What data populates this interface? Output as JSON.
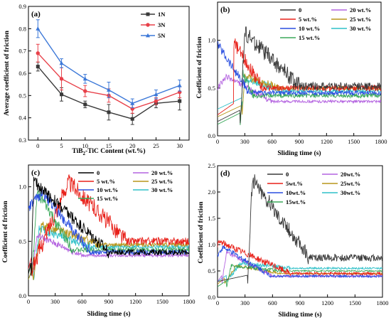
{
  "chart_data": [
    {
      "type": "line",
      "panel": "(a)",
      "xlabel_parts": [
        "TiB",
        "2",
        "-TiC Content (wt.%)"
      ],
      "ylabel": "Average coefficient of friction",
      "x": [
        0,
        5,
        10,
        15,
        20,
        25,
        30
      ],
      "xlim": [
        -2,
        32
      ],
      "ylim": [
        0.3,
        0.9
      ],
      "xticks": [
        "0",
        "5",
        "10",
        "15",
        "20",
        "25",
        "30"
      ],
      "yticks": [
        "0.3",
        "0.4",
        "0.5",
        "0.6",
        "0.7",
        "0.8",
        "0.9"
      ],
      "legend_position": "top-right",
      "series": [
        {
          "name": "1N",
          "color": "#3a3a3a",
          "marker": "square",
          "values": [
            0.63,
            0.505,
            0.46,
            0.425,
            0.395,
            0.465,
            0.475
          ],
          "errors": [
            0.02,
            0.03,
            0.015,
            0.035,
            0.025,
            0.02,
            0.04
          ]
        },
        {
          "name": "3N",
          "color": "#e8414a",
          "marker": "circle",
          "values": [
            0.69,
            0.575,
            0.52,
            0.5,
            0.44,
            0.475,
            0.515
          ],
          "errors": [
            0.04,
            0.05,
            0.025,
            0.03,
            0.02,
            0.015,
            0.025
          ]
        },
        {
          "name": "5N",
          "color": "#3c78d8",
          "marker": "triangle",
          "values": [
            0.8,
            0.645,
            0.575,
            0.525,
            0.465,
            0.505,
            0.545
          ],
          "errors": [
            0.04,
            0.02,
            0.02,
            0.035,
            0.02,
            0.02,
            0.025
          ]
        }
      ]
    },
    {
      "type": "line",
      "panel": "(b)",
      "xlabel": "Sliding time (s)",
      "ylabel": "Coefficient of friction",
      "xlim": [
        0,
        1800
      ],
      "ylim": [
        0,
        1.4
      ],
      "xticks": [
        "0",
        "300",
        "600",
        "900",
        "1200",
        "1500",
        "1800"
      ],
      "yticks": [
        "0.0",
        "0.5",
        "1.0"
      ],
      "ytick_values": [
        0,
        0.5,
        1.0
      ],
      "legend_position": "top-right",
      "series": [
        {
          "name": "0",
          "color": "#3a3a3a",
          "start": 0.15,
          "peak": 1.08,
          "peak_t": 300,
          "steady": 0.52,
          "trans": 900,
          "noise": 0.09,
          "jump_t": 250
        },
        {
          "name": "5 wt.%",
          "color": "#e8211a",
          "start": 0.22,
          "peak": 1.02,
          "peak_t": 150,
          "steady": 0.5,
          "trans": 500,
          "noise": 0.07,
          "jump_t": 180
        },
        {
          "name": "10 wt.%",
          "color": "#2a4fe0",
          "start": 0.95,
          "peak": 0.95,
          "peak_t": 10,
          "steady": 0.45,
          "trans": 350,
          "noise": 0.05,
          "jump_t": 0
        },
        {
          "name": "15 wt.%",
          "color": "#3aa85a",
          "start": 0.12,
          "peak": 0.65,
          "peak_t": 280,
          "steady": 0.42,
          "trans": 400,
          "noise": 0.05,
          "jump_t": 250
        },
        {
          "name": "20 wt.%",
          "color": "#b463e0",
          "start": 0.5,
          "peak": 0.62,
          "peak_t": 100,
          "steady": 0.36,
          "trans": 600,
          "noise": 0.03,
          "jump_t": 0
        },
        {
          "name": "25 wt.%",
          "color": "#b8961c",
          "start": 0.2,
          "peak": 0.62,
          "peak_t": 300,
          "steady": 0.5,
          "trans": 700,
          "noise": 0.04,
          "jump_t": 270
        },
        {
          "name": "30 wt.%",
          "color": "#2ec0c8",
          "start": 0.28,
          "peak": 0.6,
          "peak_t": 300,
          "steady": 0.47,
          "trans": 700,
          "noise": 0.04,
          "jump_t": 270
        }
      ]
    },
    {
      "type": "line",
      "panel": "(c)",
      "xlabel": "Sliding time (s)",
      "ylabel": "Coefficient of friction",
      "xlim": [
        0,
        1800
      ],
      "ylim": [
        0,
        1.2
      ],
      "xticks": [
        "0",
        "300",
        "600",
        "900",
        "1200",
        "1500",
        "1800"
      ],
      "yticks": [
        "0.0",
        "0.5",
        "1.0"
      ],
      "ytick_values": [
        0,
        0.5,
        1.0
      ],
      "legend_position": "top-right",
      "series": [
        {
          "name": "0",
          "color": "#000000",
          "start": 0.2,
          "peak": 1.05,
          "peak_t": 60,
          "steady": 0.4,
          "trans": 900,
          "noise": 0.06,
          "jump_t": 30
        },
        {
          "name": "5 wt.%",
          "color": "#e8211a",
          "start": 0.25,
          "peak": 1.05,
          "peak_t": 450,
          "steady": 0.5,
          "trans": 1100,
          "noise": 0.08,
          "jump_t": 40
        },
        {
          "name": "10 wt.%",
          "color": "#2a4fe0",
          "start": 0.8,
          "peak": 0.95,
          "peak_t": 150,
          "steady": 0.4,
          "trans": 700,
          "noise": 0.05,
          "jump_t": 0
        },
        {
          "name": "15 wt.%",
          "color": "#3aa85a",
          "start": 0.2,
          "peak": 0.95,
          "peak_t": 100,
          "steady": 0.42,
          "trans": 500,
          "noise": 0.05,
          "jump_t": 40
        },
        {
          "name": "20 wt.%",
          "color": "#b463e0",
          "start": 0.25,
          "peak": 0.55,
          "peak_t": 100,
          "steady": 0.37,
          "trans": 600,
          "noise": 0.03,
          "jump_t": 40
        },
        {
          "name": "25 wt.%",
          "color": "#b8961c",
          "start": 0.15,
          "peak": 0.65,
          "peak_t": 150,
          "steady": 0.47,
          "trans": 800,
          "noise": 0.04,
          "jump_t": 50
        },
        {
          "name": "30 wt.%",
          "color": "#2ec0c8",
          "start": 0.15,
          "peak": 0.62,
          "peak_t": 120,
          "steady": 0.45,
          "trans": 700,
          "noise": 0.04,
          "jump_t": 60
        }
      ]
    },
    {
      "type": "line",
      "panel": "(d)",
      "xlabel": "Sliding time (s)",
      "ylabel": "Coefficient of friction",
      "xlim": [
        0,
        1800
      ],
      "ylim": [
        0,
        2.5
      ],
      "xticks": [
        "0",
        "300",
        "600",
        "900",
        "1200",
        "1500",
        "1800"
      ],
      "yticks": [
        "0.0",
        "0.5",
        "1.0",
        "1.5",
        "2.0",
        "2.5"
      ],
      "ytick_values": [
        0,
        0.5,
        1.0,
        1.5,
        2.0,
        2.5
      ],
      "legend_position": "top-right",
      "series": [
        {
          "name": "0",
          "color": "#3a3a3a",
          "start": 0.3,
          "peak": 2.25,
          "peak_t": 380,
          "steady": 0.75,
          "trans": 1000,
          "noise": 0.15,
          "jump_t": 330
        },
        {
          "name": "5wt.%",
          "color": "#e8211a",
          "start": 1.0,
          "peak": 1.05,
          "peak_t": 30,
          "steady": 0.45,
          "trans": 800,
          "noise": 0.06,
          "jump_t": 0
        },
        {
          "name": "10wt.%",
          "color": "#2a4fe0",
          "start": 0.8,
          "peak": 0.95,
          "peak_t": 60,
          "steady": 0.4,
          "trans": 600,
          "noise": 0.05,
          "jump_t": 0
        },
        {
          "name": "15wt.%",
          "color": "#3aa85a",
          "start": 0.2,
          "peak": 0.6,
          "peak_t": 150,
          "steady": 0.5,
          "trans": 700,
          "noise": 0.03,
          "jump_t": 100
        },
        {
          "name": "20wt.%",
          "color": "#b463e0",
          "start": 0.3,
          "peak": 0.85,
          "peak_t": 100,
          "steady": 0.4,
          "trans": 600,
          "noise": 0.04,
          "jump_t": 50
        },
        {
          "name": "25wt.%",
          "color": "#b8961c",
          "start": 0.25,
          "peak": 0.6,
          "peak_t": 200,
          "steady": 0.45,
          "trans": 700,
          "noise": 0.03,
          "jump_t": 80
        },
        {
          "name": "30wt.%",
          "color": "#2ec0c8",
          "start": 0.3,
          "peak": 0.65,
          "peak_t": 250,
          "steady": 0.55,
          "trans": 800,
          "noise": 0.04,
          "jump_t": 100
        }
      ]
    }
  ]
}
